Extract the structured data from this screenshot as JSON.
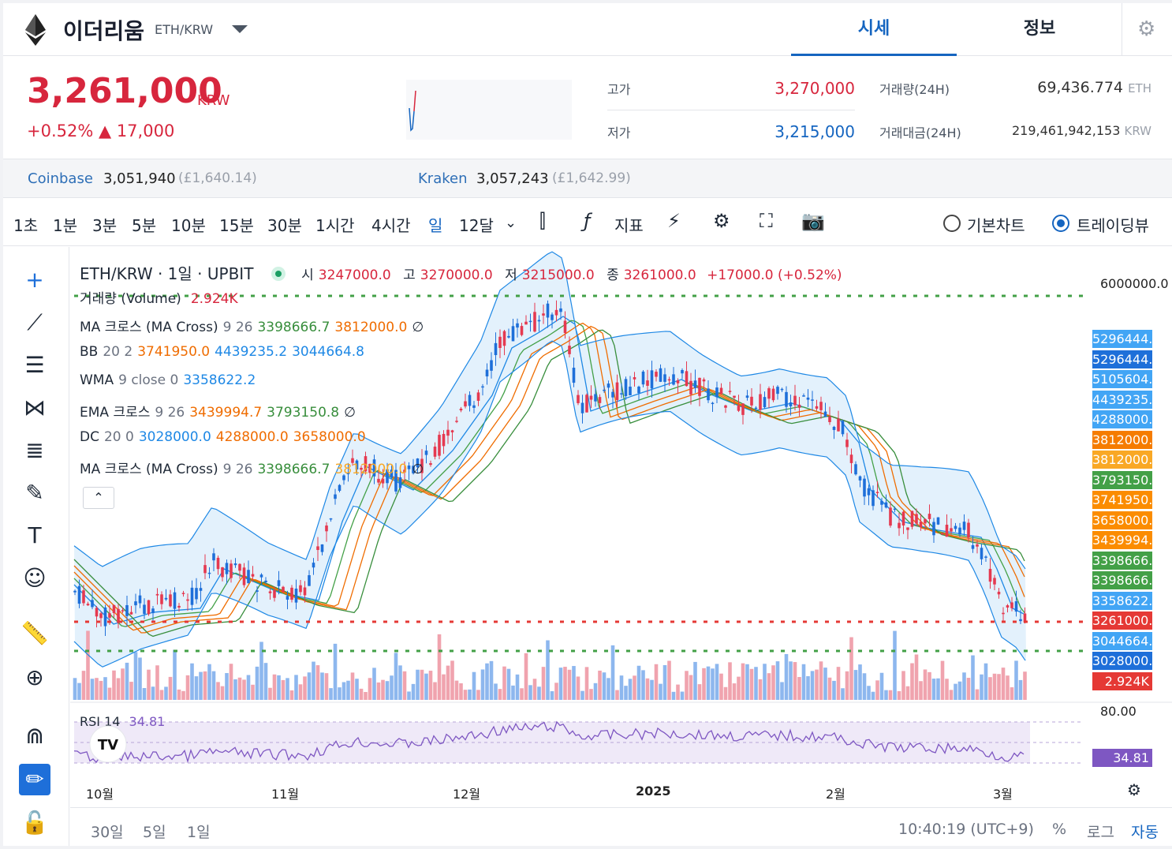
{
  "header": {
    "coin_name": "이더리움",
    "pair": "ETH/KRW",
    "tabs": [
      "시세",
      "정보"
    ]
  },
  "price": {
    "current": "3,261,000",
    "unit": "KRW",
    "change_pct": "+0.52%",
    "change_abs": "▲ 17,000"
  },
  "stats": {
    "high_label": "고가",
    "high": "3,270,000",
    "low_label": "저가",
    "low": "3,215,000",
    "vol_label": "거래량(24H)",
    "vol": "69,436.774",
    "vol_unit": "ETH",
    "amt_label": "거래대금(24H)",
    "amt": "219,461,942,153",
    "amt_unit": "KRW"
  },
  "exchanges": [
    {
      "name": "Coinbase",
      "price": "3,051,940",
      "sub": "(£1,640.14)"
    },
    {
      "name": "Kraken",
      "price": "3,057,243",
      "sub": "(£1,642.99)"
    }
  ],
  "toolbar": {
    "intervals": [
      "1초",
      "1분",
      "3분",
      "5분",
      "10분",
      "15분",
      "30분",
      "1시간",
      "4시간",
      "일",
      "12달"
    ],
    "active_interval": "일",
    "indicator_label": "지표",
    "basic_chart": "기본차트",
    "tradingview": "트레이딩뷰"
  },
  "chart": {
    "title": "ETH/KRW · 1일 · UPBIT",
    "ohlc": {
      "o_label": "시",
      "o": "3247000.0",
      "h_label": "고",
      "h": "3270000.0",
      "l_label": "저",
      "l": "3215000.0",
      "c_label": "종",
      "c": "3261000.0",
      "chg": "+17000.0 (+0.52%)"
    },
    "legends": [
      {
        "name": "거래량 (Volume)",
        "params": "",
        "values": [
          "2.924K"
        ],
        "colors": [
          "#d7263d"
        ],
        "suffix": ""
      },
      {
        "name": "MA 크로스 (MA Cross)",
        "params": "9 26",
        "values": [
          "3398666.7",
          "3812000.0"
        ],
        "colors": [
          "#388e3c",
          "#ef6c00"
        ],
        "suffix": "∅"
      },
      {
        "name": "BB",
        "params": "20 2",
        "values": [
          "3741950.0",
          "4439235.2",
          "3044664.8"
        ],
        "colors": [
          "#ef6c00",
          "#1e88e5",
          "#1e88e5"
        ],
        "suffix": ""
      },
      {
        "name": "WMA",
        "params": "9 close 0",
        "values": [
          "3358622.2"
        ],
        "colors": [
          "#1e88e5"
        ],
        "suffix": ""
      },
      {
        "name": "EMA 크로스",
        "params": "9 26",
        "values": [
          "3439994.7",
          "3793150.8"
        ],
        "colors": [
          "#ef6c00",
          "#388e3c"
        ],
        "suffix": "∅"
      },
      {
        "name": "DC",
        "params": "20 0",
        "values": [
          "3028000.0",
          "4288000.0",
          "3658000.0"
        ],
        "colors": [
          "#1e88e5",
          "#ef6c00",
          "#ef6c00"
        ],
        "suffix": ""
      },
      {
        "name": "MA 크로스 (MA Cross)",
        "params": "9 26",
        "values": [
          "3398666.7",
          "3812000.0"
        ],
        "colors": [
          "#388e3c",
          "#f9a825"
        ],
        "suffix": "∅"
      }
    ],
    "y_top_label": "6000000.0",
    "price_tags": [
      {
        "v": "5296444.4",
        "c": "#42a5f5"
      },
      {
        "v": "5296444.4",
        "c": "#1e6fd9"
      },
      {
        "v": "5105604.4",
        "c": "#42a5f5"
      },
      {
        "v": "4439235.2",
        "c": "#42a5f5"
      },
      {
        "v": "4288000.0",
        "c": "#42a5f5"
      },
      {
        "v": "3812000.0",
        "c": "#f57c00"
      },
      {
        "v": "3812000.0",
        "c": "#f9a825"
      },
      {
        "v": "3793150.8",
        "c": "#43a047"
      },
      {
        "v": "3741950.0",
        "c": "#fb8c00"
      },
      {
        "v": "3658000.0",
        "c": "#fb8c00"
      },
      {
        "v": "3439994.7",
        "c": "#fb8c00"
      },
      {
        "v": "3398666.7",
        "c": "#43a047"
      },
      {
        "v": "3398666.7",
        "c": "#43a047"
      },
      {
        "v": "3358622.2",
        "c": "#42a5f5"
      },
      {
        "v": "3261000.0",
        "c": "#e53935"
      },
      {
        "v": "3044664.8",
        "c": "#42a5f5"
      },
      {
        "v": "3028000.0",
        "c": "#1e6fd9"
      },
      {
        "v": "2.924K",
        "c": "#e53935"
      }
    ],
    "rsi_label": "RSI 14",
    "rsi_value": "34.81",
    "rsi_top": "80.00",
    "x_labels": [
      "10월",
      "11월",
      "12월",
      "2025",
      "2월",
      "3월"
    ]
  },
  "bottom": {
    "ranges": [
      "30일",
      "5일",
      "1일"
    ],
    "time": "10:40:19 (UTC+9)",
    "pct": "%",
    "log": "로그",
    "auto": "자동"
  }
}
